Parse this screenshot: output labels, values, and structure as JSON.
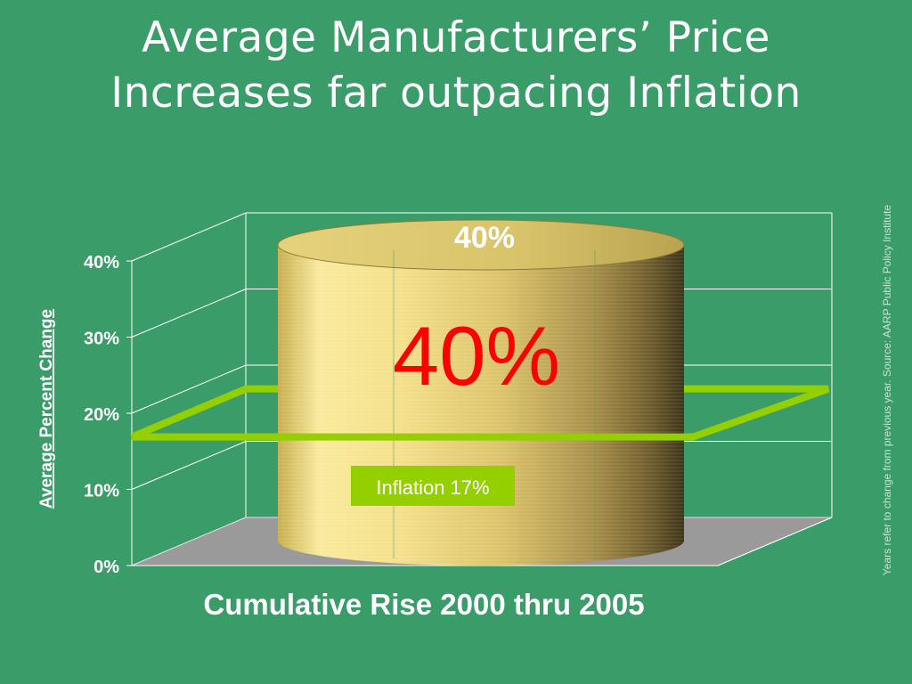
{
  "title": {
    "line1": "Average Manufacturers’ Price",
    "line2": "Increases far outpacing Inflation"
  },
  "source_note": "Years refer to change from previous year. Source: AARP Public Policy Institute",
  "colors": {
    "background": "#3a9c69",
    "floor": "#9a9a9a",
    "cylinder": "#d8c36a",
    "inflation_line": "#94cf00",
    "big_label": "#ff0000"
  },
  "chart_data": {
    "type": "bar",
    "shape": "3d-cylinder",
    "categories": [
      ""
    ],
    "values": [
      40
    ],
    "xlabel": "Cumulative Rise 2000 thru 2005",
    "ylabel": "Average Percent Change",
    "yticks": [
      "0%",
      "10%",
      "20%",
      "30%",
      "40%"
    ],
    "ylim": [
      0,
      40
    ],
    "grid": true,
    "data_label": "40%",
    "big_label": "40%",
    "reference_line": {
      "label": "Inflation 17%",
      "value": 17
    }
  }
}
